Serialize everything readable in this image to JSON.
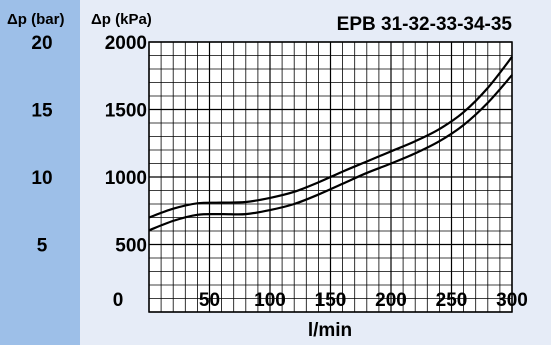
{
  "chart_data": {
    "type": "line",
    "title": "EPB 31-32-33-34-35",
    "xlabel": "l/min",
    "ylabel": "Δp (kPa)",
    "y2label": "Δp (bar)",
    "xlim": [
      0,
      300
    ],
    "ylim": [
      0,
      2000
    ],
    "x_ticks": [
      0,
      50,
      100,
      150,
      200,
      250,
      300
    ],
    "y_ticks": [
      500,
      1000,
      1500,
      2000
    ],
    "y2_ticks": [
      5,
      10,
      15,
      20
    ],
    "grid": true,
    "series": [
      {
        "x": [
          0,
          20,
          40,
          60,
          80,
          100,
          120,
          140,
          160,
          180,
          200,
          220,
          240,
          260,
          280,
          300
        ],
        "values": [
          700,
          765,
          805,
          810,
          815,
          845,
          890,
          960,
          1040,
          1115,
          1190,
          1265,
          1355,
          1480,
          1660,
          1890
        ]
      },
      {
        "x": [
          0,
          20,
          40,
          60,
          80,
          100,
          120,
          140,
          160,
          180,
          200,
          220,
          240,
          260,
          280,
          300
        ],
        "values": [
          605,
          675,
          720,
          725,
          725,
          755,
          800,
          870,
          950,
          1030,
          1100,
          1175,
          1265,
          1385,
          1550,
          1755
        ]
      }
    ],
    "colors": {
      "page_bg": "#e6ecf7",
      "left_band": "#9dbfe8",
      "plot_bg": "#ffffff",
      "line": "#000000"
    }
  }
}
